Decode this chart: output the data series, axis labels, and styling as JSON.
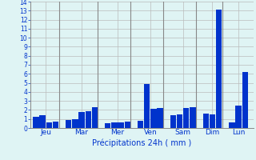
{
  "xlabel": "Précipitations 24h ( mm )",
  "background_color": "#dff4f4",
  "bar_color": "#0033cc",
  "ylim": [
    0,
    14
  ],
  "yticks": [
    0,
    1,
    2,
    3,
    4,
    5,
    6,
    7,
    8,
    9,
    10,
    11,
    12,
    13,
    14
  ],
  "day_labels": [
    "Jeu",
    "Mar",
    "Mer",
    "Ven",
    "Sam",
    "Dim",
    "Lun"
  ],
  "bars": [
    {
      "label": "Jeu",
      "values": [
        1.2,
        1.4,
        0.6,
        0.7
      ]
    },
    {
      "label": "Mar",
      "values": [
        0.9,
        1.0,
        1.8,
        1.9,
        2.3
      ]
    },
    {
      "label": "Mer",
      "values": [
        0.5,
        0.6,
        0.6,
        0.7
      ]
    },
    {
      "label": "Ven",
      "values": [
        0.8,
        4.9,
        2.1,
        2.2
      ]
    },
    {
      "label": "Sam",
      "values": [
        1.4,
        1.5,
        2.2,
        2.3
      ]
    },
    {
      "label": "Dim",
      "values": [
        1.6,
        1.5,
        13.1
      ]
    },
    {
      "label": "Lun",
      "values": [
        0.6,
        2.5,
        6.2
      ]
    }
  ],
  "grid_color": "#bbbbbb",
  "tick_color": "#0033cc",
  "label_color": "#0033cc",
  "separator_color": "#888888",
  "figsize": [
    3.2,
    2.0
  ],
  "dpi": 100
}
